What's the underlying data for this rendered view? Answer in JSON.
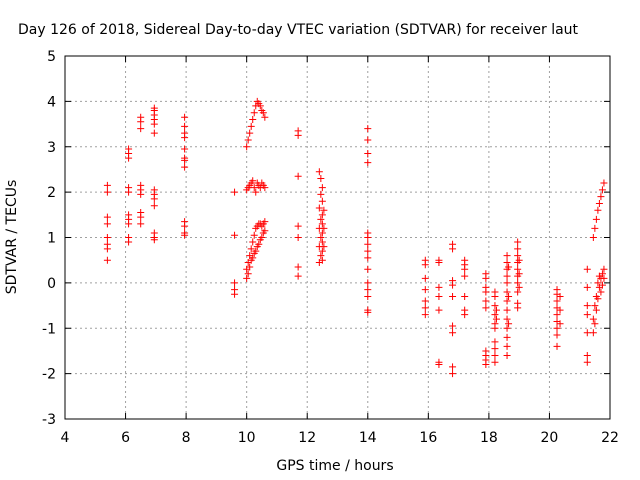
{
  "chart_data": {
    "type": "scatter",
    "title": "Day 126 of 2018, Sidereal Day-to-day VTEC variation (SDTVAR) for receiver laut",
    "xlabel": "GPS time / hours",
    "ylabel": "SDTVAR / TECUs",
    "xlim": [
      4,
      22
    ],
    "ylim": [
      -3,
      5
    ],
    "xticks": [
      4,
      6,
      8,
      10,
      12,
      14,
      16,
      18,
      20,
      22
    ],
    "yticks": [
      -3,
      -2,
      -1,
      0,
      1,
      2,
      3,
      4,
      5
    ],
    "xtick_labels": [
      "4",
      "6",
      "8",
      "10",
      "12",
      "14",
      "16",
      "18",
      "20",
      "22"
    ],
    "ytick_labels": [
      "-3",
      "-2",
      "-1",
      "0",
      "1",
      "2",
      "3",
      "4",
      "5"
    ],
    "grid": true,
    "marker": "+",
    "color": "#ff0000",
    "series": [
      {
        "name": "SDTVAR",
        "points": [
          [
            5.4,
            2.15
          ],
          [
            5.4,
            2.0
          ],
          [
            5.4,
            1.45
          ],
          [
            5.4,
            1.3
          ],
          [
            5.4,
            1.0
          ],
          [
            5.4,
            0.85
          ],
          [
            5.4,
            0.75
          ],
          [
            5.4,
            0.5
          ],
          [
            6.1,
            2.95
          ],
          [
            6.1,
            2.85
          ],
          [
            6.1,
            2.75
          ],
          [
            6.1,
            2.1
          ],
          [
            6.1,
            2.0
          ],
          [
            6.1,
            1.5
          ],
          [
            6.1,
            1.4
          ],
          [
            6.1,
            1.3
          ],
          [
            6.1,
            1.0
          ],
          [
            6.1,
            0.9
          ],
          [
            6.5,
            3.65
          ],
          [
            6.5,
            3.55
          ],
          [
            6.5,
            3.4
          ],
          [
            6.5,
            2.15
          ],
          [
            6.5,
            2.05
          ],
          [
            6.5,
            1.95
          ],
          [
            6.5,
            1.55
          ],
          [
            6.5,
            1.45
          ],
          [
            6.5,
            1.3
          ],
          [
            6.95,
            3.85
          ],
          [
            6.95,
            3.8
          ],
          [
            6.95,
            3.7
          ],
          [
            6.95,
            3.6
          ],
          [
            6.95,
            3.5
          ],
          [
            6.95,
            3.3
          ],
          [
            6.95,
            2.05
          ],
          [
            6.95,
            1.95
          ],
          [
            6.95,
            1.85
          ],
          [
            6.95,
            1.7
          ],
          [
            6.95,
            1.1
          ],
          [
            6.95,
            1.0
          ],
          [
            6.95,
            0.95
          ],
          [
            7.95,
            3.65
          ],
          [
            7.95,
            3.45
          ],
          [
            7.95,
            3.3
          ],
          [
            7.95,
            3.2
          ],
          [
            7.95,
            2.95
          ],
          [
            7.95,
            2.75
          ],
          [
            7.95,
            2.7
          ],
          [
            7.95,
            2.55
          ],
          [
            7.95,
            1.35
          ],
          [
            7.95,
            1.25
          ],
          [
            7.95,
            1.1
          ],
          [
            7.95,
            1.05
          ],
          [
            9.6,
            2.0
          ],
          [
            9.6,
            1.05
          ],
          [
            9.6,
            0.0
          ],
          [
            9.6,
            -0.15
          ],
          [
            9.6,
            -0.25
          ],
          [
            10.0,
            3.0
          ],
          [
            10.05,
            3.15
          ],
          [
            10.1,
            3.3
          ],
          [
            10.15,
            3.45
          ],
          [
            10.2,
            3.6
          ],
          [
            10.25,
            3.75
          ],
          [
            10.3,
            3.9
          ],
          [
            10.35,
            4.0
          ],
          [
            10.4,
            3.95
          ],
          [
            10.45,
            3.9
          ],
          [
            10.5,
            3.8
          ],
          [
            10.55,
            3.75
          ],
          [
            10.6,
            3.65
          ],
          [
            10.0,
            2.05
          ],
          [
            10.05,
            2.1
          ],
          [
            10.1,
            2.15
          ],
          [
            10.15,
            2.2
          ],
          [
            10.2,
            2.25
          ],
          [
            10.25,
            2.1
          ],
          [
            10.3,
            2.0
          ],
          [
            10.35,
            2.2
          ],
          [
            10.4,
            2.15
          ],
          [
            10.45,
            2.1
          ],
          [
            10.5,
            2.2
          ],
          [
            10.55,
            2.15
          ],
          [
            10.6,
            2.1
          ],
          [
            10.0,
            0.3
          ],
          [
            10.05,
            0.45
          ],
          [
            10.1,
            0.6
          ],
          [
            10.15,
            0.75
          ],
          [
            10.2,
            0.9
          ],
          [
            10.25,
            1.05
          ],
          [
            10.3,
            1.2
          ],
          [
            10.35,
            1.25
          ],
          [
            10.4,
            1.3
          ],
          [
            10.45,
            1.3
          ],
          [
            10.5,
            1.25
          ],
          [
            10.55,
            1.3
          ],
          [
            10.6,
            1.35
          ],
          [
            10.0,
            0.1
          ],
          [
            10.05,
            0.2
          ],
          [
            10.1,
            0.35
          ],
          [
            10.15,
            0.5
          ],
          [
            10.2,
            0.55
          ],
          [
            10.25,
            0.65
          ],
          [
            10.3,
            0.7
          ],
          [
            10.35,
            0.8
          ],
          [
            10.4,
            0.85
          ],
          [
            10.45,
            0.95
          ],
          [
            10.5,
            1.0
          ],
          [
            10.55,
            1.1
          ],
          [
            10.6,
            1.15
          ],
          [
            11.7,
            3.35
          ],
          [
            11.7,
            3.25
          ],
          [
            11.7,
            2.35
          ],
          [
            11.7,
            1.25
          ],
          [
            11.7,
            1.0
          ],
          [
            11.7,
            0.35
          ],
          [
            11.7,
            0.15
          ],
          [
            12.4,
            2.45
          ],
          [
            12.45,
            2.3
          ],
          [
            12.5,
            2.1
          ],
          [
            12.45,
            1.95
          ],
          [
            12.5,
            1.8
          ],
          [
            12.4,
            1.65
          ],
          [
            12.5,
            1.5
          ],
          [
            12.45,
            1.4
          ],
          [
            12.5,
            1.3
          ],
          [
            12.4,
            1.2
          ],
          [
            12.5,
            1.1
          ],
          [
            12.45,
            1.0
          ],
          [
            12.5,
            0.9
          ],
          [
            12.4,
            0.8
          ],
          [
            12.5,
            0.7
          ],
          [
            12.45,
            0.6
          ],
          [
            12.5,
            0.5
          ],
          [
            12.4,
            0.45
          ],
          [
            12.55,
            1.6
          ],
          [
            12.55,
            1.2
          ],
          [
            12.55,
            0.8
          ],
          [
            14.0,
            3.4
          ],
          [
            14.0,
            3.15
          ],
          [
            14.0,
            2.85
          ],
          [
            14.0,
            2.65
          ],
          [
            14.0,
            1.1
          ],
          [
            14.0,
            1.0
          ],
          [
            14.0,
            0.85
          ],
          [
            14.0,
            0.7
          ],
          [
            14.0,
            0.55
          ],
          [
            14.0,
            0.3
          ],
          [
            14.0,
            0.0
          ],
          [
            14.0,
            -0.15
          ],
          [
            14.0,
            -0.3
          ],
          [
            14.0,
            -0.6
          ],
          [
            14.0,
            -0.65
          ],
          [
            15.9,
            0.5
          ],
          [
            15.9,
            0.4
          ],
          [
            15.9,
            0.1
          ],
          [
            15.9,
            -0.15
          ],
          [
            15.9,
            -0.4
          ],
          [
            15.9,
            -0.55
          ],
          [
            15.9,
            -0.7
          ],
          [
            16.35,
            0.5
          ],
          [
            16.35,
            0.45
          ],
          [
            16.35,
            -0.1
          ],
          [
            16.35,
            -0.3
          ],
          [
            16.35,
            -0.6
          ],
          [
            16.35,
            -1.75
          ],
          [
            16.35,
            -1.8
          ],
          [
            16.8,
            0.85
          ],
          [
            16.8,
            0.75
          ],
          [
            16.8,
            0.05
          ],
          [
            16.8,
            -0.05
          ],
          [
            16.8,
            -0.3
          ],
          [
            16.8,
            -0.95
          ],
          [
            16.8,
            -1.1
          ],
          [
            16.8,
            -1.85
          ],
          [
            16.8,
            -2.0
          ],
          [
            17.2,
            0.5
          ],
          [
            17.2,
            0.4
          ],
          [
            17.2,
            0.3
          ],
          [
            17.2,
            0.15
          ],
          [
            17.2,
            -0.3
          ],
          [
            17.2,
            -0.6
          ],
          [
            17.2,
            -0.7
          ],
          [
            17.9,
            0.2
          ],
          [
            17.9,
            0.1
          ],
          [
            17.9,
            -0.1
          ],
          [
            17.9,
            -0.2
          ],
          [
            17.9,
            -0.4
          ],
          [
            17.9,
            -0.55
          ],
          [
            17.9,
            -1.5
          ],
          [
            17.9,
            -1.6
          ],
          [
            17.9,
            -1.7
          ],
          [
            17.9,
            -1.8
          ],
          [
            18.2,
            -0.2
          ],
          [
            18.2,
            -0.3
          ],
          [
            18.2,
            -0.5
          ],
          [
            18.2,
            -0.7
          ],
          [
            18.2,
            -0.9
          ],
          [
            18.2,
            -1.0
          ],
          [
            18.2,
            -1.3
          ],
          [
            18.2,
            -1.45
          ],
          [
            18.2,
            -1.6
          ],
          [
            18.2,
            -1.75
          ],
          [
            18.25,
            -0.6
          ],
          [
            18.25,
            -0.8
          ],
          [
            18.6,
            0.6
          ],
          [
            18.6,
            0.45
          ],
          [
            18.6,
            0.3
          ],
          [
            18.6,
            0.15
          ],
          [
            18.6,
            0.0
          ],
          [
            18.6,
            -0.2
          ],
          [
            18.6,
            -0.4
          ],
          [
            18.6,
            -0.6
          ],
          [
            18.6,
            -0.8
          ],
          [
            18.6,
            -1.0
          ],
          [
            18.6,
            -1.2
          ],
          [
            18.6,
            -1.4
          ],
          [
            18.6,
            -1.6
          ],
          [
            18.65,
            0.35
          ],
          [
            18.65,
            -0.3
          ],
          [
            18.65,
            -0.9
          ],
          [
            18.95,
            0.9
          ],
          [
            18.95,
            0.75
          ],
          [
            18.95,
            0.6
          ],
          [
            18.95,
            0.45
          ],
          [
            18.95,
            0.3
          ],
          [
            18.95,
            0.15
          ],
          [
            18.95,
            0.0
          ],
          [
            18.95,
            -0.2
          ],
          [
            18.95,
            -0.45
          ],
          [
            18.95,
            -0.55
          ],
          [
            19.0,
            0.5
          ],
          [
            19.0,
            0.2
          ],
          [
            19.0,
            -0.1
          ],
          [
            20.25,
            -0.15
          ],
          [
            20.25,
            -0.25
          ],
          [
            20.25,
            -0.4
          ],
          [
            20.25,
            -0.55
          ],
          [
            20.25,
            -0.7
          ],
          [
            20.25,
            -0.85
          ],
          [
            20.25,
            -1.0
          ],
          [
            20.25,
            -1.15
          ],
          [
            20.25,
            -1.4
          ],
          [
            20.35,
            -0.3
          ],
          [
            20.35,
            -0.6
          ],
          [
            20.35,
            -0.9
          ],
          [
            21.25,
            0.3
          ],
          [
            21.25,
            -0.1
          ],
          [
            21.25,
            -0.5
          ],
          [
            21.25,
            -0.7
          ],
          [
            21.25,
            -1.1
          ],
          [
            21.25,
            -1.6
          ],
          [
            21.25,
            -1.75
          ],
          [
            21.45,
            1.0
          ],
          [
            21.5,
            1.2
          ],
          [
            21.55,
            1.4
          ],
          [
            21.6,
            1.6
          ],
          [
            21.65,
            1.75
          ],
          [
            21.7,
            1.9
          ],
          [
            21.75,
            2.05
          ],
          [
            21.8,
            2.2
          ],
          [
            21.45,
            -1.1
          ],
          [
            21.5,
            -0.9
          ],
          [
            21.55,
            -0.6
          ],
          [
            21.6,
            -0.35
          ],
          [
            21.65,
            -0.1
          ],
          [
            21.7,
            0.1
          ],
          [
            21.75,
            0.2
          ],
          [
            21.8,
            0.3
          ],
          [
            21.45,
            -0.8
          ],
          [
            21.5,
            -0.5
          ],
          [
            21.55,
            -0.3
          ],
          [
            21.6,
            0.0
          ],
          [
            21.65,
            0.15
          ],
          [
            21.7,
            -0.2
          ],
          [
            21.75,
            -0.05
          ],
          [
            21.8,
            0.1
          ]
        ]
      }
    ]
  }
}
